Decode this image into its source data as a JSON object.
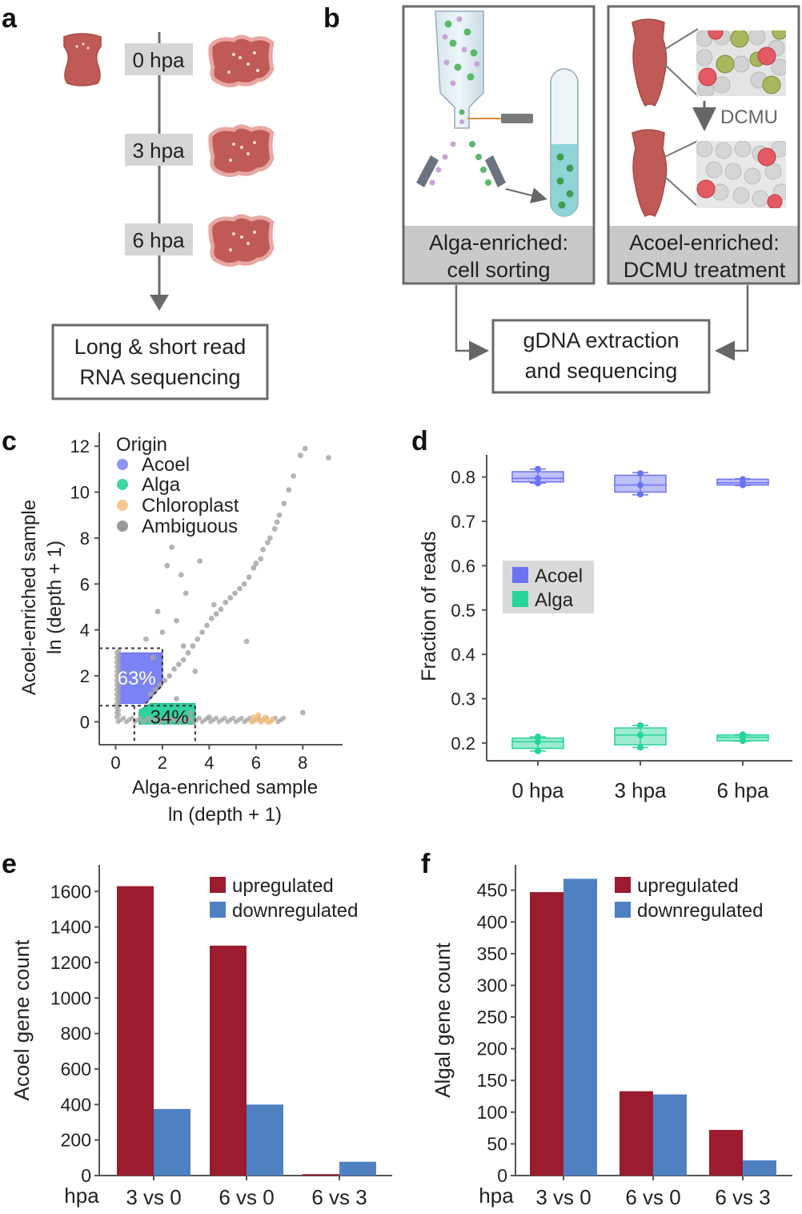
{
  "panels": {
    "a": {
      "letter": "a",
      "timepoints": [
        "0 hpa",
        "3 hpa",
        "6 hpa"
      ],
      "box_line1": "Long & short read",
      "box_line2": "RNA sequencing"
    },
    "b": {
      "letter": "b",
      "dcmu_label": "DCMU",
      "left_caption_line1": "Alga-enriched:",
      "left_caption_line2": "cell sorting",
      "right_caption_line1": "Acoel-enriched:",
      "right_caption_line2": "DCMU treatment",
      "bottom_line1": "gDNA extraction",
      "bottom_line2": "and sequencing"
    },
    "c": {
      "letter": "c",
      "legend_title": "Origin",
      "legend": [
        {
          "label": "Acoel",
          "color": "#8f96f5"
        },
        {
          "label": "Alga",
          "color": "#3fd6a6"
        },
        {
          "label": "Chloroplast",
          "color": "#f7c98e"
        },
        {
          "label": "Ambiguous",
          "color": "#999999"
        }
      ],
      "region_acoel_label": "63%",
      "region_alga_label": "34%",
      "xlabel_line1": "Alga-enriched sample",
      "xlabel_line2": "ln (depth   + 1)",
      "ylabel_line1": "Acoel-enriched sample",
      "ylabel_line2": "ln (depth   + 1)"
    },
    "d": {
      "letter": "d"
    },
    "e": {
      "letter": "e"
    },
    "f": {
      "letter": "f"
    }
  },
  "chart_data": [
    {
      "id": "c",
      "type": "scatter",
      "title": "",
      "xlabel": "Alga-enriched sample ln (depth + 1)",
      "ylabel": "Acoel-enriched sample ln (depth + 1)",
      "xlim": [
        -0.7,
        9.7
      ],
      "ylim": [
        -1.0,
        12.6
      ],
      "xticks": [
        0,
        2,
        4,
        6,
        8
      ],
      "yticks": [
        0,
        2,
        4,
        6,
        8,
        10,
        12
      ],
      "series": [
        {
          "name": "Ambiguous",
          "color": "#a7a7a7",
          "x": [
            9.1,
            8.1,
            7.9,
            7.6,
            7.4,
            7.2,
            7.0,
            6.9,
            6.8,
            6.6,
            6.5,
            6.3,
            6.2,
            6.0,
            5.9,
            5.7,
            5.5,
            5.3,
            5.1,
            4.9,
            4.7,
            4.5,
            4.3,
            4.1,
            3.9,
            3.7,
            3.5,
            3.3,
            3.1,
            2.9,
            2.7,
            2.5,
            2.3,
            2.1,
            1.9,
            1.7,
            1.5,
            3.6,
            4.2,
            2.8,
            3.0,
            2.4,
            2.2,
            2.6,
            5.6,
            3.4,
            8.0,
            1.3,
            1.8,
            2.0,
            3.2,
            4.0,
            2.6,
            2.9,
            1.6
          ],
          "y": [
            11.5,
            11.9,
            11.6,
            10.7,
            10.1,
            9.5,
            9.0,
            8.7,
            8.4,
            8.0,
            7.8,
            7.5,
            7.1,
            6.9,
            6.7,
            6.3,
            6.0,
            5.8,
            5.6,
            5.4,
            5.2,
            4.9,
            4.7,
            4.5,
            4.2,
            3.9,
            3.6,
            3.3,
            3.0,
            2.7,
            2.5,
            2.3,
            2.0,
            1.8,
            1.6,
            1.4,
            1.2,
            7.0,
            5.1,
            6.4,
            5.6,
            7.6,
            6.8,
            4.4,
            3.5,
            2.2,
            0.4,
            3.6,
            4.8,
            3.9,
            0.4,
            0.2,
            1.0,
            3.3,
            2.8
          ]
        },
        {
          "name": "Chloroplast",
          "color": "#f3bf7c",
          "x": [
            5.8,
            6.0,
            6.2,
            6.4,
            6.5,
            6.7,
            6.1,
            5.9,
            6.3,
            6.6
          ],
          "y": [
            0.0,
            0.1,
            0.0,
            0.2,
            0.0,
            0.1,
            0.3,
            0.2,
            0.1,
            0.0
          ]
        }
      ],
      "regions": [
        {
          "name": "Acoel",
          "label": "63%",
          "color": "#7b82f3"
        },
        {
          "name": "Alga",
          "label": "34%",
          "color": "#2fd29e"
        }
      ]
    },
    {
      "id": "d",
      "type": "box",
      "ylabel": "Fraction of reads",
      "categories": [
        "0 hpa",
        "3 hpa",
        "6 hpa"
      ],
      "ylim": [
        0.16,
        0.85
      ],
      "yticks": [
        0.2,
        0.3,
        0.4,
        0.5,
        0.6,
        0.7,
        0.8
      ],
      "legend": [
        {
          "label": "Acoel",
          "color": "#6c73f2"
        },
        {
          "label": "Alga",
          "color": "#25d39b"
        }
      ],
      "series": [
        {
          "name": "Acoel",
          "color": "#6c73f2",
          "boxes": [
            {
              "min": 0.786,
              "q1": 0.789,
              "median": 0.797,
              "q3": 0.812,
              "max": 0.818,
              "points": [
                0.818,
                0.797,
                0.786
              ]
            },
            {
              "min": 0.76,
              "q1": 0.766,
              "median": 0.782,
              "q3": 0.804,
              "max": 0.81,
              "points": [
                0.808,
                0.782,
                0.761
              ]
            },
            {
              "min": 0.781,
              "q1": 0.782,
              "median": 0.787,
              "q3": 0.795,
              "max": 0.796,
              "points": [
                0.795,
                0.787,
                0.782
              ]
            }
          ]
        },
        {
          "name": "Alga",
          "color": "#25d39b",
          "boxes": [
            {
              "min": 0.182,
              "q1": 0.188,
              "median": 0.203,
              "q3": 0.211,
              "max": 0.214,
              "points": [
                0.214,
                0.203,
                0.182
              ]
            },
            {
              "min": 0.19,
              "q1": 0.196,
              "median": 0.218,
              "q3": 0.234,
              "max": 0.24,
              "points": [
                0.24,
                0.218,
                0.19
              ]
            },
            {
              "min": 0.204,
              "q1": 0.205,
              "median": 0.213,
              "q3": 0.218,
              "max": 0.219,
              "points": [
                0.219,
                0.213,
                0.205
              ]
            }
          ]
        }
      ]
    },
    {
      "id": "e",
      "type": "bar",
      "ylabel": "Acoel gene count",
      "xlabel": "hpa",
      "categories": [
        "3 vs 0",
        "6 vs 0",
        "6 vs 3"
      ],
      "ylim": [
        0,
        1750
      ],
      "yticks": [
        0,
        200,
        400,
        600,
        800,
        1000,
        1200,
        1400,
        1600
      ],
      "series": [
        {
          "name": "upregulated",
          "color": "#9a1c2e",
          "values": [
            1630,
            1295,
            8
          ]
        },
        {
          "name": "downregulated",
          "color": "#4f80c2",
          "values": [
            375,
            400,
            78
          ]
        }
      ]
    },
    {
      "id": "f",
      "type": "bar",
      "ylabel": "Algal gene count",
      "xlabel": "hpa",
      "categories": [
        "3 vs 0",
        "6 vs 0",
        "6 vs 3"
      ],
      "ylim": [
        0,
        490
      ],
      "yticks": [
        0,
        50,
        100,
        150,
        200,
        250,
        300,
        350,
        400,
        450
      ],
      "series": [
        {
          "name": "upregulated",
          "color": "#9a1c2e",
          "values": [
            447,
            133,
            72
          ]
        },
        {
          "name": "downregulated",
          "color": "#4f80c2",
          "values": [
            468,
            128,
            24
          ]
        }
      ]
    }
  ]
}
